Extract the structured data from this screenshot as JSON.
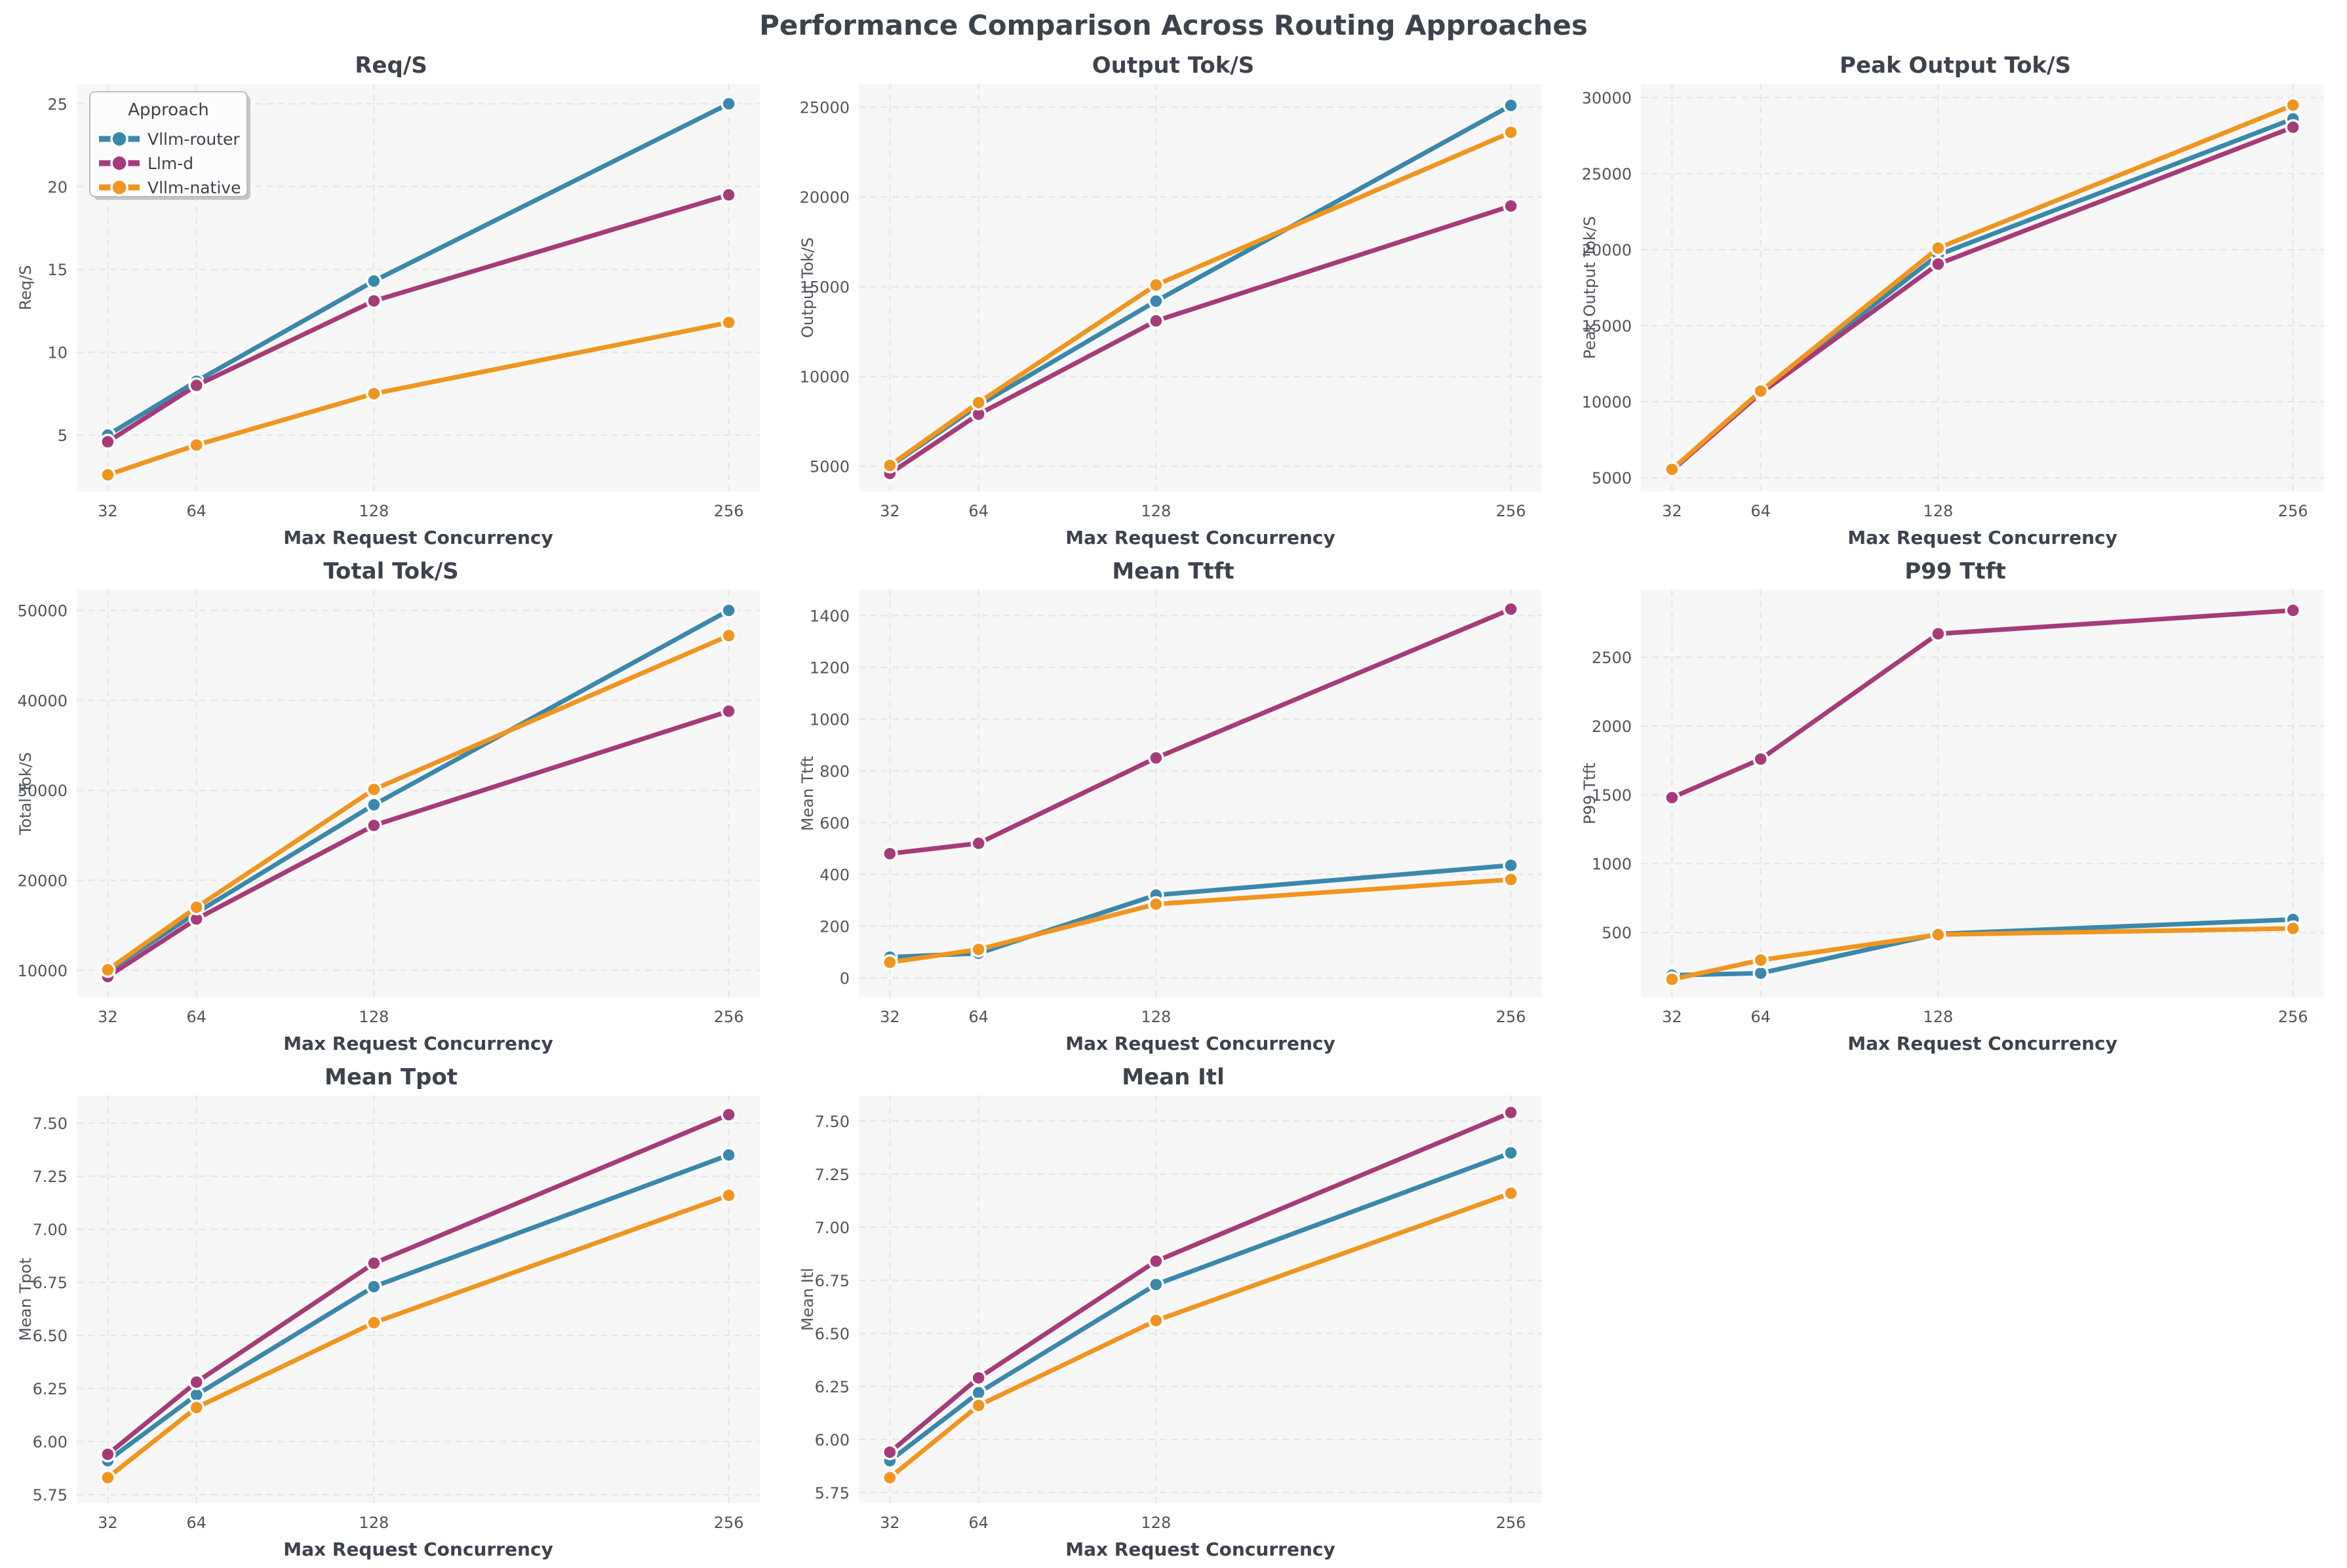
{
  "page_title": "Performance Comparison Across Routing Approaches",
  "colors": {
    "vllm_router": "#3a88ab",
    "llm_d": "#a63b79",
    "vllm_native": "#f0951f"
  },
  "style": {
    "plot_bg": "#f7f7f7",
    "grid_color": "#e6e6e9",
    "title_color": "#3d434d",
    "tick_color": "#50555d",
    "marker_edge": "#ffffff"
  },
  "legend": {
    "title": "Approach",
    "entries": [
      {
        "label": "Vllm-router",
        "color_key": "vllm_router"
      },
      {
        "label": "Llm-d",
        "color_key": "llm_d"
      },
      {
        "label": "Vllm-native",
        "color_key": "vllm_native"
      }
    ]
  },
  "x_axis": {
    "label": "Max Request Concurrency",
    "values": [
      32,
      64,
      128,
      256
    ],
    "tick_labels": [
      "32",
      "64",
      "128",
      "256"
    ],
    "xlim": [
      20.8,
      267.2
    ]
  },
  "chart_data": [
    {
      "id": "req-s",
      "type": "line",
      "title": "Req/S",
      "ylabel": "Req/S",
      "xlabel": "Max Request Concurrency",
      "x": [
        32,
        64,
        128,
        256
      ],
      "ylim": [
        1.6,
        26.2
      ],
      "yticks": [
        5,
        10,
        15,
        20,
        25
      ],
      "ytick_labels": [
        "5",
        "10",
        "15",
        "20",
        "25"
      ],
      "legend": true,
      "series": [
        {
          "name": "Vllm-router",
          "color_key": "vllm_router",
          "values": [
            5.0,
            8.25,
            14.3,
            25.0
          ]
        },
        {
          "name": "Llm-d",
          "color_key": "llm_d",
          "values": [
            4.6,
            8.0,
            13.1,
            19.5
          ]
        },
        {
          "name": "Vllm-native",
          "color_key": "vllm_native",
          "values": [
            2.6,
            4.4,
            7.5,
            11.8
          ]
        }
      ]
    },
    {
      "id": "output-tok-s",
      "type": "line",
      "title": "Output Tok/S",
      "ylabel": "Output Tok/S",
      "xlabel": "Max Request Concurrency",
      "x": [
        32,
        64,
        128,
        256
      ],
      "ylim": [
        3600,
        26300
      ],
      "yticks": [
        5000,
        10000,
        15000,
        20000,
        25000
      ],
      "ytick_labels": [
        "5000",
        "10000",
        "15000",
        "20000",
        "25000"
      ],
      "legend": false,
      "series": [
        {
          "name": "Vllm-router",
          "color_key": "vllm_router",
          "values": [
            5000,
            8400,
            14200,
            25100
          ]
        },
        {
          "name": "Llm-d",
          "color_key": "llm_d",
          "values": [
            4600,
            7900,
            13100,
            19500
          ]
        },
        {
          "name": "Vllm-native",
          "color_key": "vllm_native",
          "values": [
            5050,
            8550,
            15100,
            23600
          ]
        }
      ]
    },
    {
      "id": "peak-output-tok-s",
      "type": "line",
      "title": "Peak Output Tok/S",
      "ylabel": "Peak Output Tok/S",
      "xlabel": "Max Request Concurrency",
      "x": [
        32,
        64,
        128,
        256
      ],
      "ylim": [
        4100,
        30900
      ],
      "yticks": [
        5000,
        10000,
        15000,
        20000,
        25000,
        30000
      ],
      "ytick_labels": [
        "5000",
        "10000",
        "15000",
        "20000",
        "25000",
        "30000"
      ],
      "legend": false,
      "series": [
        {
          "name": "Vllm-router",
          "color_key": "vllm_router",
          "values": [
            5500,
            10600,
            19650,
            28600
          ]
        },
        {
          "name": "Llm-d",
          "color_key": "llm_d",
          "values": [
            5480,
            10560,
            19050,
            28050
          ]
        },
        {
          "name": "Vllm-native",
          "color_key": "vllm_native",
          "values": [
            5550,
            10700,
            20100,
            29500
          ]
        }
      ]
    },
    {
      "id": "total-tok-s",
      "type": "line",
      "title": "Total Tok/S",
      "ylabel": "Total Tok/S",
      "xlabel": "Max Request Concurrency",
      "x": [
        32,
        64,
        128,
        256
      ],
      "ylim": [
        7000,
        52300
      ],
      "yticks": [
        10000,
        20000,
        30000,
        40000,
        50000
      ],
      "ytick_labels": [
        "10000",
        "20000",
        "30000",
        "40000",
        "50000"
      ],
      "legend": false,
      "series": [
        {
          "name": "Vllm-router",
          "color_key": "vllm_router",
          "values": [
            9900,
            16400,
            28400,
            50000
          ]
        },
        {
          "name": "Llm-d",
          "color_key": "llm_d",
          "values": [
            9300,
            15700,
            26100,
            38800
          ]
        },
        {
          "name": "Vllm-native",
          "color_key": "vllm_native",
          "values": [
            10050,
            17000,
            30100,
            47200
          ]
        }
      ]
    },
    {
      "id": "mean-ttft",
      "type": "line",
      "title": "Mean Ttft",
      "ylabel": "Mean Ttft",
      "xlabel": "Max Request Concurrency",
      "x": [
        32,
        64,
        128,
        256
      ],
      "ylim": [
        -75,
        1500
      ],
      "yticks": [
        0,
        200,
        400,
        600,
        800,
        1000,
        1200,
        1400
      ],
      "ytick_labels": [
        "0",
        "200",
        "400",
        "600",
        "800",
        "1000",
        "1200",
        "1400"
      ],
      "legend": false,
      "series": [
        {
          "name": "Vllm-router",
          "color_key": "vllm_router",
          "values": [
            80,
            95,
            320,
            435
          ]
        },
        {
          "name": "Llm-d",
          "color_key": "llm_d",
          "values": [
            480,
            520,
            850,
            1425
          ]
        },
        {
          "name": "Vllm-native",
          "color_key": "vllm_native",
          "values": [
            60,
            110,
            285,
            380
          ]
        }
      ]
    },
    {
      "id": "p99-ttft",
      "type": "line",
      "title": "P99 Ttft",
      "ylabel": "P99 Ttft",
      "xlabel": "Max Request Concurrency",
      "x": [
        32,
        64,
        128,
        256
      ],
      "ylim": [
        30,
        2990
      ],
      "yticks": [
        500,
        1000,
        1500,
        2000,
        2500
      ],
      "ytick_labels": [
        "500",
        "1000",
        "1500",
        "2000",
        "2500"
      ],
      "legend": false,
      "series": [
        {
          "name": "Vllm-router",
          "color_key": "vllm_router",
          "values": [
            190,
            205,
            490,
            595
          ]
        },
        {
          "name": "Llm-d",
          "color_key": "llm_d",
          "values": [
            1480,
            1760,
            2670,
            2840
          ]
        },
        {
          "name": "Vllm-native",
          "color_key": "vllm_native",
          "values": [
            160,
            300,
            485,
            530
          ]
        }
      ]
    },
    {
      "id": "mean-tpot",
      "type": "line",
      "title": "Mean Tpot",
      "ylabel": "Mean Tpot",
      "xlabel": "Max Request Concurrency",
      "x": [
        32,
        64,
        128,
        256
      ],
      "ylim": [
        5.71,
        7.63
      ],
      "yticks": [
        5.75,
        6.0,
        6.25,
        6.5,
        6.75,
        7.0,
        7.25,
        7.5
      ],
      "ytick_labels": [
        "5.75",
        "6.00",
        "6.25",
        "6.50",
        "6.75",
        "7.00",
        "7.25",
        "7.50"
      ],
      "legend": false,
      "series": [
        {
          "name": "Vllm-router",
          "color_key": "vllm_router",
          "values": [
            5.91,
            6.22,
            6.73,
            7.35
          ]
        },
        {
          "name": "Llm-d",
          "color_key": "llm_d",
          "values": [
            5.94,
            6.28,
            6.84,
            7.54
          ]
        },
        {
          "name": "Vllm-native",
          "color_key": "vllm_native",
          "values": [
            5.83,
            6.16,
            6.56,
            7.16
          ]
        }
      ]
    },
    {
      "id": "mean-itl",
      "type": "line",
      "title": "Mean Itl",
      "ylabel": "Mean Itl",
      "xlabel": "Max Request Concurrency",
      "x": [
        32,
        64,
        128,
        256
      ],
      "ylim": [
        5.7,
        7.62
      ],
      "yticks": [
        5.75,
        6.0,
        6.25,
        6.5,
        6.75,
        7.0,
        7.25,
        7.5
      ],
      "ytick_labels": [
        "5.75",
        "6.00",
        "6.25",
        "6.50",
        "6.75",
        "7.00",
        "7.25",
        "7.50"
      ],
      "legend": false,
      "series": [
        {
          "name": "Vllm-router",
          "color_key": "vllm_router",
          "values": [
            5.9,
            6.22,
            6.73,
            7.35
          ]
        },
        {
          "name": "Llm-d",
          "color_key": "llm_d",
          "values": [
            5.94,
            6.29,
            6.84,
            7.54
          ]
        },
        {
          "name": "Vllm-native",
          "color_key": "vllm_native",
          "values": [
            5.82,
            6.16,
            6.56,
            7.16
          ]
        }
      ]
    }
  ]
}
